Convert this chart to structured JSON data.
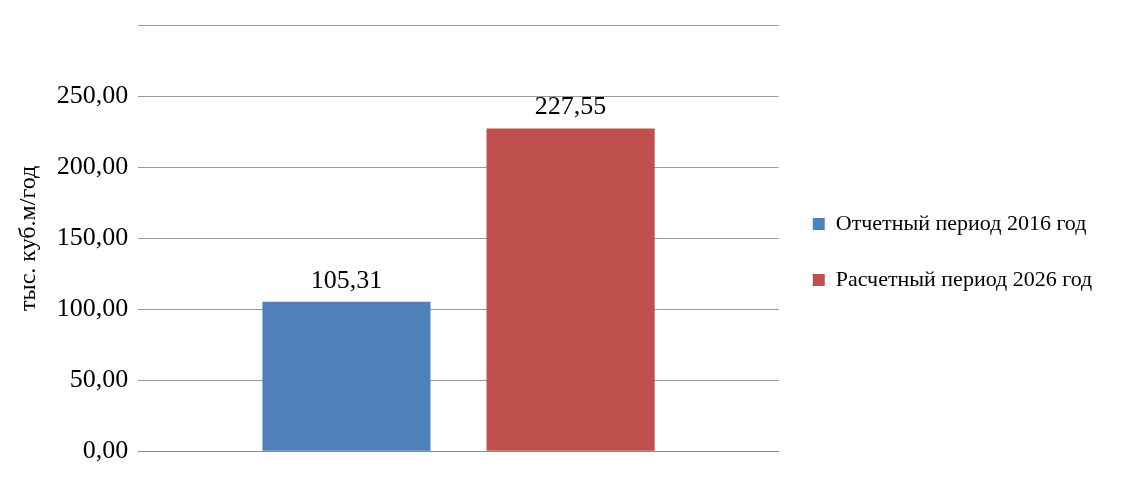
{
  "chart_data": {
    "type": "bar",
    "ylabel": "тыс. куб.м/год",
    "categories": [
      null
    ],
    "series": [
      {
        "name": "Отчетный период 2016 год",
        "color": "#4f81bd",
        "values": [
          105.31
        ],
        "value_labels": [
          "105,31"
        ]
      },
      {
        "name": "Расчетный период 2026 год",
        "color": "#c0504d",
        "values": [
          227.55
        ],
        "value_labels": [
          "227,55"
        ]
      }
    ],
    "ylim": [
      0,
      300
    ],
    "yticks": [
      {
        "value": 0,
        "label": "0,00"
      },
      {
        "value": 50,
        "label": "50,00"
      },
      {
        "value": 100,
        "label": "100,00"
      },
      {
        "value": 150,
        "label": "150,00"
      },
      {
        "value": 200,
        "label": "200,00"
      },
      {
        "value": 250,
        "label": "250,00"
      },
      {
        "value": 300,
        "label": null
      }
    ],
    "grid": "y",
    "legend": "right"
  }
}
